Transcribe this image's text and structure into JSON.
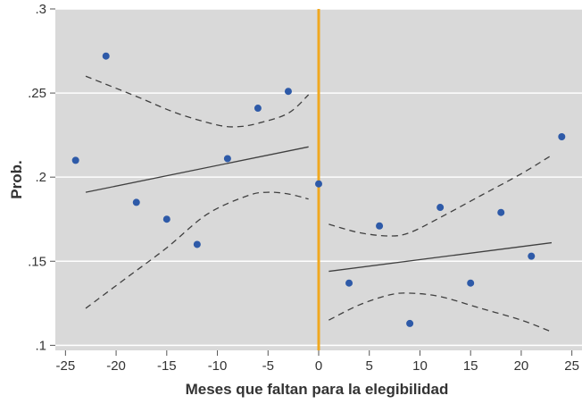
{
  "chart_data": {
    "type": "scatter",
    "title": "",
    "xlabel": "Meses que faltan para la elegibilidad",
    "ylabel": "Prob.",
    "xlim": [
      -26,
      26
    ],
    "ylim": [
      0.097,
      0.3
    ],
    "grid": true,
    "xticks": [
      -25,
      -20,
      -15,
      -10,
      -5,
      0,
      5,
      10,
      15,
      20,
      25
    ],
    "xtick_labels": [
      "-25",
      "-20",
      "-15",
      "-10",
      "-5",
      "0",
      "5",
      "10",
      "15",
      "20",
      "25"
    ],
    "yticks": [
      0.1,
      0.15,
      0.2,
      0.25,
      0.3
    ],
    "ytick_labels": [
      ".1",
      ".15",
      ".2",
      ".25",
      ".3"
    ],
    "cutoff": 0,
    "points": [
      {
        "x": -24,
        "y": 0.21
      },
      {
        "x": -21,
        "y": 0.272
      },
      {
        "x": -18,
        "y": 0.185
      },
      {
        "x": -15,
        "y": 0.175
      },
      {
        "x": -12,
        "y": 0.16
      },
      {
        "x": -9,
        "y": 0.211
      },
      {
        "x": -6,
        "y": 0.241
      },
      {
        "x": -3,
        "y": 0.251
      },
      {
        "x": 0,
        "y": 0.196
      },
      {
        "x": 3,
        "y": 0.137
      },
      {
        "x": 6,
        "y": 0.171
      },
      {
        "x": 9,
        "y": 0.113
      },
      {
        "x": 12,
        "y": 0.182
      },
      {
        "x": 15,
        "y": 0.137
      },
      {
        "x": 18,
        "y": 0.179
      },
      {
        "x": 21,
        "y": 0.153
      },
      {
        "x": 24,
        "y": 0.224
      }
    ],
    "fit_left": [
      {
        "x": -23,
        "y": 0.191
      },
      {
        "x": -1,
        "y": 0.218
      }
    ],
    "fit_right": [
      {
        "x": 1,
        "y": 0.144
      },
      {
        "x": 23,
        "y": 0.161
      }
    ],
    "ci_left_upper": [
      {
        "x": -23,
        "y": 0.26
      },
      {
        "x": -18,
        "y": 0.248
      },
      {
        "x": -14,
        "y": 0.238
      },
      {
        "x": -10,
        "y": 0.231
      },
      {
        "x": -8,
        "y": 0.23
      },
      {
        "x": -6,
        "y": 0.232
      },
      {
        "x": -3,
        "y": 0.238
      },
      {
        "x": -1,
        "y": 0.249
      }
    ],
    "ci_left_lower": [
      {
        "x": -23,
        "y": 0.122
      },
      {
        "x": -19,
        "y": 0.14
      },
      {
        "x": -15,
        "y": 0.158
      },
      {
        "x": -11,
        "y": 0.178
      },
      {
        "x": -7,
        "y": 0.189
      },
      {
        "x": -5,
        "y": 0.191
      },
      {
        "x": -3,
        "y": 0.19
      },
      {
        "x": -1,
        "y": 0.187
      }
    ],
    "ci_right_upper": [
      {
        "x": 1,
        "y": 0.172
      },
      {
        "x": 4,
        "y": 0.167
      },
      {
        "x": 7,
        "y": 0.165
      },
      {
        "x": 9,
        "y": 0.167
      },
      {
        "x": 12,
        "y": 0.176
      },
      {
        "x": 16,
        "y": 0.189
      },
      {
        "x": 20,
        "y": 0.202
      },
      {
        "x": 23,
        "y": 0.213
      }
    ],
    "ci_right_lower": [
      {
        "x": 1,
        "y": 0.115
      },
      {
        "x": 4,
        "y": 0.124
      },
      {
        "x": 7,
        "y": 0.13
      },
      {
        "x": 9,
        "y": 0.131
      },
      {
        "x": 12,
        "y": 0.129
      },
      {
        "x": 16,
        "y": 0.122
      },
      {
        "x": 20,
        "y": 0.115
      },
      {
        "x": 23,
        "y": 0.108
      }
    ],
    "colors": {
      "plot_background": "#d9d9d9",
      "grid": "#ffffff",
      "points": "#2e5aa8",
      "fit_line": "#404040",
      "ci_line": "#404040",
      "cutoff_line": "#f0a820"
    }
  }
}
